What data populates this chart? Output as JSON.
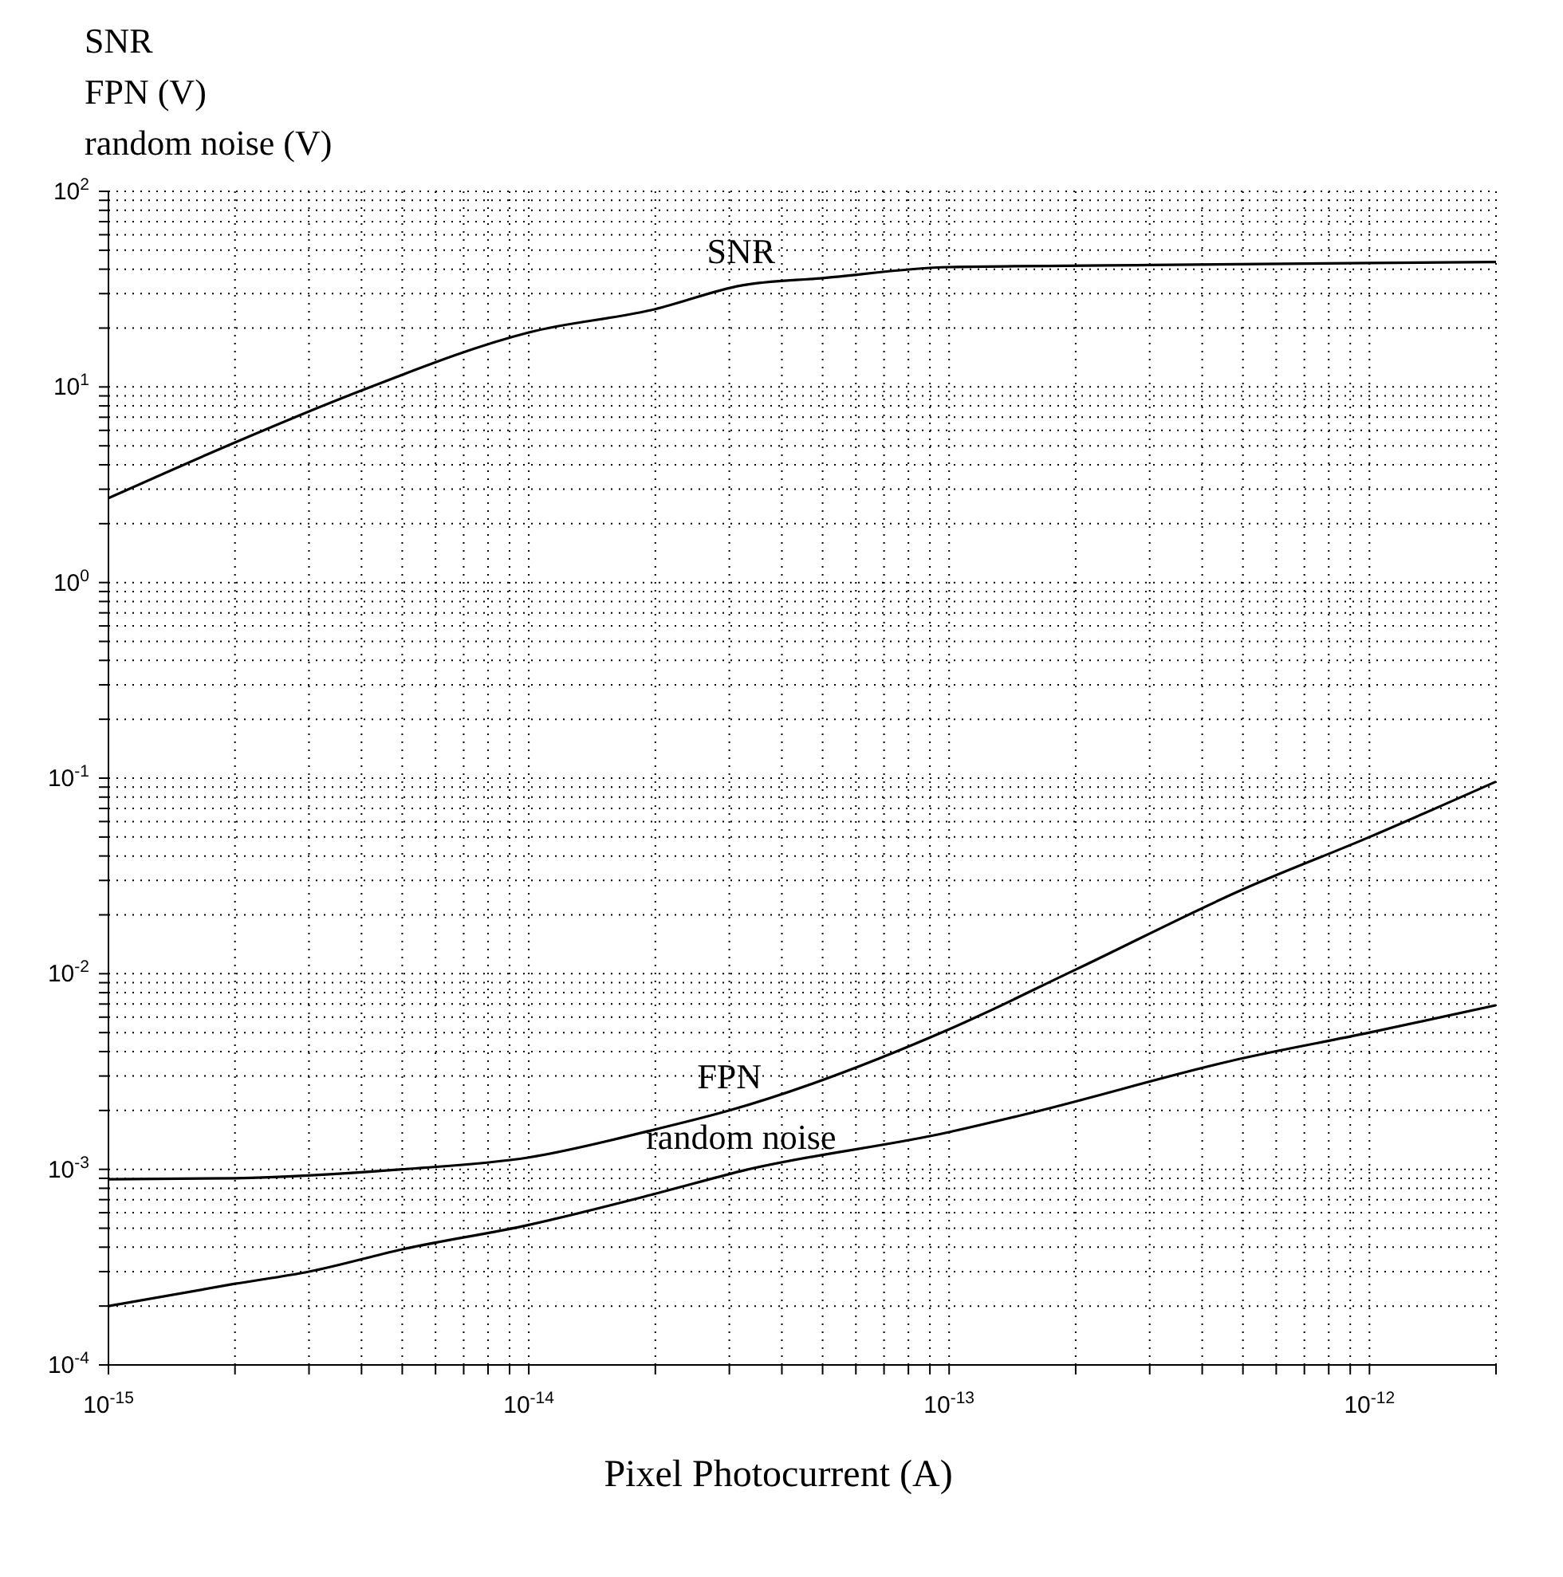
{
  "chart_data": {
    "type": "line",
    "ylabel": "SNR\nFPN (V)\nrandom noise (V)",
    "xlabel": "Pixel Photocurrent (A)",
    "log": "xy",
    "grid": true,
    "marker": "none",
    "line_style": "solid",
    "xlim": [
      1e-15,
      2e-12
    ],
    "ylim": [
      0.0001,
      100
    ],
    "xticks": [
      {
        "value": 1e-15,
        "label": "10$^{-15}$"
      },
      {
        "value": 2e-15,
        "label": null
      },
      {
        "value": 3e-15,
        "label": null
      },
      {
        "value": 4e-15,
        "label": null
      },
      {
        "value": 5e-15,
        "label": null
      },
      {
        "value": 6e-15,
        "label": null
      },
      {
        "value": 7e-15,
        "label": null
      },
      {
        "value": 8e-15,
        "label": null
      },
      {
        "value": 9e-15,
        "label": null
      },
      {
        "value": 1e-14,
        "label": "10$^{-14}$"
      },
      {
        "value": 2e-14,
        "label": null
      },
      {
        "value": 3e-14,
        "label": null
      },
      {
        "value": 4e-14,
        "label": null
      },
      {
        "value": 5e-14,
        "label": null
      },
      {
        "value": 6e-14,
        "label": null
      },
      {
        "value": 7e-14,
        "label": null
      },
      {
        "value": 8e-14,
        "label": null
      },
      {
        "value": 9e-14,
        "label": null
      },
      {
        "value": 1e-13,
        "label": "10$^{-13}$"
      },
      {
        "value": 2e-13,
        "label": null
      },
      {
        "value": 3e-13,
        "label": null
      },
      {
        "value": 4e-13,
        "label": null
      },
      {
        "value": 5e-13,
        "label": null
      },
      {
        "value": 6e-13,
        "label": null
      },
      {
        "value": 7e-13,
        "label": null
      },
      {
        "value": 8e-13,
        "label": null
      },
      {
        "value": 9e-13,
        "label": null
      },
      {
        "value": 1e-12,
        "label": "10$^{-12}$"
      },
      {
        "value": 2e-12,
        "label": null
      }
    ],
    "yticks": [
      {
        "value": 0.0001,
        "label": "10$^{-4}$"
      },
      {
        "value": 0.0002,
        "label": null
      },
      {
        "value": 0.0003,
        "label": null
      },
      {
        "value": 0.0004,
        "label": null
      },
      {
        "value": 0.0005,
        "label": null
      },
      {
        "value": 0.0006,
        "label": null
      },
      {
        "value": 0.0007,
        "label": null
      },
      {
        "value": 0.0008,
        "label": null
      },
      {
        "value": 0.0009,
        "label": null
      },
      {
        "value": 0.001,
        "label": "10$^{-3}$"
      },
      {
        "value": 0.002,
        "label": null
      },
      {
        "value": 0.003,
        "label": null
      },
      {
        "value": 0.004,
        "label": null
      },
      {
        "value": 0.005,
        "label": null
      },
      {
        "value": 0.006,
        "label": null
      },
      {
        "value": 0.007,
        "label": null
      },
      {
        "value": 0.008,
        "label": null
      },
      {
        "value": 0.009,
        "label": null
      },
      {
        "value": 0.01,
        "label": "10$^{-2}$"
      },
      {
        "value": 0.02,
        "label": null
      },
      {
        "value": 0.03,
        "label": null
      },
      {
        "value": 0.04,
        "label": null
      },
      {
        "value": 0.05,
        "label": null
      },
      {
        "value": 0.06,
        "label": null
      },
      {
        "value": 0.07,
        "label": null
      },
      {
        "value": 0.08,
        "label": null
      },
      {
        "value": 0.09,
        "label": null
      },
      {
        "value": 0.1,
        "label": "10$^{-1}$"
      },
      {
        "value": 0.2,
        "label": null
      },
      {
        "value": 0.3,
        "label": null
      },
      {
        "value": 0.4,
        "label": null
      },
      {
        "value": 0.5,
        "label": null
      },
      {
        "value": 0.6,
        "label": null
      },
      {
        "value": 0.7,
        "label": null
      },
      {
        "value": 0.8,
        "label": null
      },
      {
        "value": 0.9,
        "label": null
      },
      {
        "value": 1,
        "label": "10$^{0}$"
      },
      {
        "value": 2,
        "label": null
      },
      {
        "value": 3,
        "label": null
      },
      {
        "value": 4,
        "label": null
      },
      {
        "value": 5,
        "label": null
      },
      {
        "value": 6,
        "label": null
      },
      {
        "value": 7,
        "label": null
      },
      {
        "value": 8,
        "label": null
      },
      {
        "value": 9,
        "label": null
      },
      {
        "value": 10,
        "label": "10$^{1}$"
      },
      {
        "value": 20,
        "label": null
      },
      {
        "value": 30,
        "label": null
      },
      {
        "value": 40,
        "label": null
      },
      {
        "value": 50,
        "label": null
      },
      {
        "value": 60,
        "label": null
      },
      {
        "value": 70,
        "label": null
      },
      {
        "value": 80,
        "label": null
      },
      {
        "value": 90,
        "label": null
      },
      {
        "value": 100,
        "label": "10$^{2}$"
      }
    ],
    "series": [
      {
        "name": "SNR",
        "color": "#000000",
        "x": [
          1e-15,
          2e-15,
          4e-15,
          1e-14,
          2e-14,
          3.2e-14,
          5e-14,
          1e-13,
          3e-13,
          1e-12,
          2e-12
        ],
        "values": [
          2.7,
          5.2,
          9.6,
          19,
          25,
          33,
          36,
          41,
          42,
          43,
          43.5
        ]
      },
      {
        "name": "FPN",
        "color": "#000000",
        "x": [
          1e-15,
          2e-15,
          5e-15,
          1e-14,
          2e-14,
          3e-14,
          1e-13,
          2e-13,
          5e-13,
          1e-12,
          2e-12
        ],
        "values": [
          0.00089,
          0.0009,
          0.001,
          0.00115,
          0.0016,
          0.002,
          0.0052,
          0.0105,
          0.027,
          0.05,
          0.096
        ]
      },
      {
        "name": "random noise",
        "color": "#000000",
        "x": [
          1e-15,
          2e-15,
          3e-15,
          5e-15,
          1e-14,
          2e-14,
          3.2e-14,
          1e-13,
          1.5e-13,
          5e-13,
          1e-12,
          2e-12
        ],
        "values": [
          0.0002,
          0.00026,
          0.0003,
          0.00039,
          0.00052,
          0.00075,
          0.00098,
          0.00155,
          0.0019,
          0.0037,
          0.005,
          0.0069
        ]
      }
    ]
  }
}
